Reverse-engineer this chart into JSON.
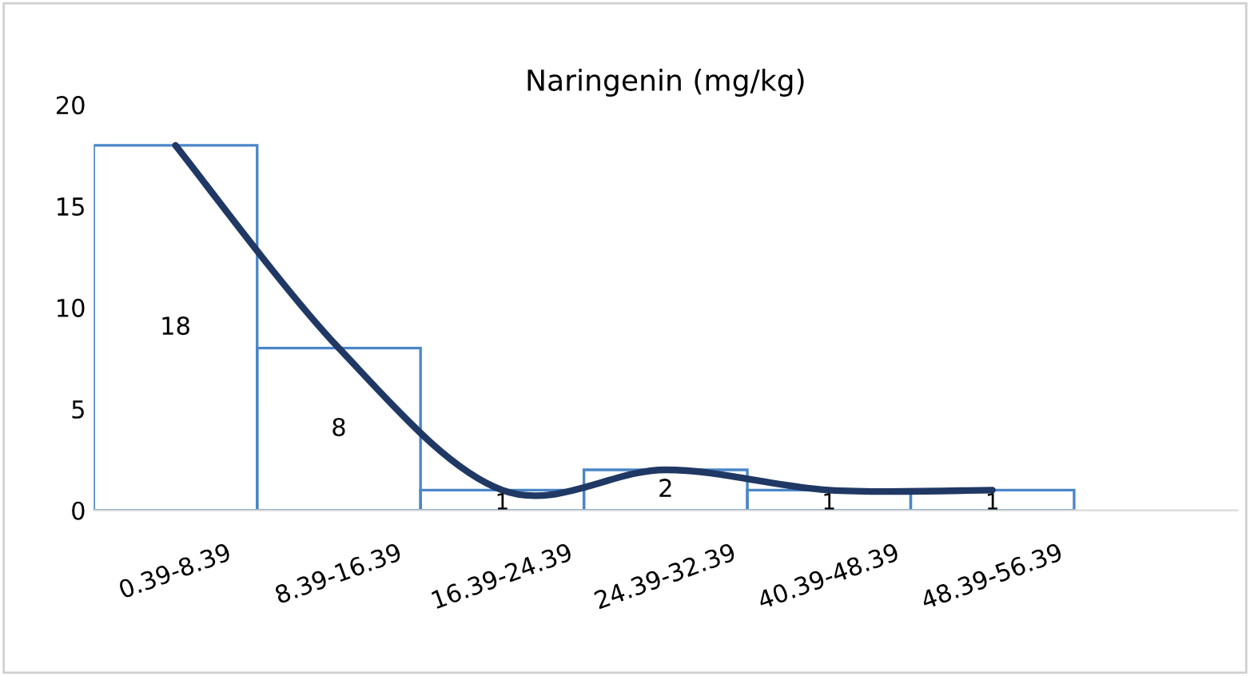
{
  "chart_data": {
    "type": "bar",
    "title": "Naringenin (mg/kg)",
    "categories": [
      "0.39-8.39",
      "8.39-16.39",
      "16.39-24.39",
      "24.39-32.39",
      "40.39-48.39",
      "48.39-56.39",
      null
    ],
    "series": [
      {
        "color": "#4a86c8",
        "values": [
          18,
          8,
          1,
          2,
          1,
          1,
          null
        ],
        "value_labels": [
          "18",
          "8",
          "1",
          "2",
          "1",
          "1",
          null
        ]
      },
      {
        "type": "line",
        "color": "#203864",
        "values": [
          18,
          8,
          1,
          2,
          1,
          1,
          null
        ]
      }
    ],
    "ylim": [
      0,
      20
    ],
    "yticks": [
      0,
      5,
      10,
      15,
      20
    ],
    "grid": false,
    "legend": false
  }
}
